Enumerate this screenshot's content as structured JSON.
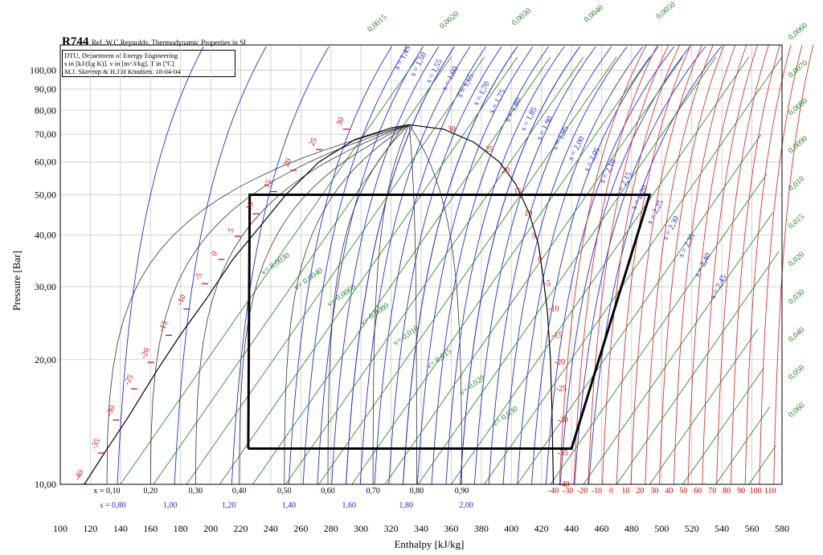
{
  "header": {
    "fluid": "R744",
    "ref": "Ref.:W.C.Reynolds: Thermodynamic Properties in SI",
    "info": [
      "DTU, Department of Energy Engineering",
      "s in [kJ/(kg K)]. v in [m^3/kg]. T in [ºC]",
      "M.J. Skovrup & H.J.H Knudsen. 18-04-04"
    ]
  },
  "chart_data": {
    "type": "line",
    "title": "R744",
    "xlabel": "Enthalpy [kJ/kg]",
    "ylabel": "Pressure [Bar]",
    "xlim": [
      100,
      580
    ],
    "ylim": [
      10,
      115
    ],
    "y_scale": "log",
    "grid": true,
    "x_ticks": [
      "100",
      "120",
      "140",
      "160",
      "180",
      "200",
      "220",
      "240",
      "260",
      "280",
      "300",
      "320",
      "340",
      "360",
      "380",
      "400",
      "420",
      "440",
      "460",
      "480",
      "500",
      "520",
      "540",
      "560",
      "580"
    ],
    "y_ticks": [
      {
        "value": 10,
        "label": "10,00"
      },
      {
        "value": 20,
        "label": "20,00"
      },
      {
        "value": 30,
        "label": "30,00"
      },
      {
        "value": 40,
        "label": "40,00"
      },
      {
        "value": 50,
        "label": "50,00"
      },
      {
        "value": 60,
        "label": "60,00"
      },
      {
        "value": 70,
        "label": "70,00"
      },
      {
        "value": 80,
        "label": "80,00"
      },
      {
        "value": 90,
        "label": "90,00"
      },
      {
        "value": 100,
        "label": "100,00"
      }
    ],
    "saturation_dome": {
      "liquid": [
        [
          116,
          10
        ],
        [
          130,
          12
        ],
        [
          145,
          14.5
        ],
        [
          165,
          19
        ],
        [
          180,
          23
        ],
        [
          197,
          28
        ],
        [
          215,
          35
        ],
        [
          233,
          42
        ],
        [
          250,
          50
        ],
        [
          272,
          60
        ],
        [
          296,
          68
        ],
        [
          320,
          72.5
        ],
        [
          332,
          73.8
        ]
      ],
      "vapor": [
        [
          332,
          73.8
        ],
        [
          355,
          72
        ],
        [
          375,
          67
        ],
        [
          392,
          60
        ],
        [
          403,
          53
        ],
        [
          412,
          45
        ],
        [
          418,
          38
        ],
        [
          421,
          32
        ],
        [
          424,
          26
        ],
        [
          426,
          20
        ],
        [
          427,
          15
        ],
        [
          427.5,
          12
        ],
        [
          428,
          10
        ]
      ]
    },
    "quality_lines": {
      "labels": [
        "x = 0,10",
        "0,20",
        "0,30",
        "0,40",
        "0,50",
        "0,60",
        "0,70",
        "0,80",
        "0,90"
      ],
      "x_at_10bar": [
        131,
        160,
        190,
        219,
        249,
        278,
        308,
        337,
        367
      ]
    },
    "isotherms_liquid_labels": [
      "-40",
      "-35",
      "-30",
      "-25",
      "-20",
      "-15",
      "-10",
      "-5",
      "0",
      "5",
      "10",
      "15",
      "20",
      "25",
      "30"
    ],
    "isotherms_liquid_points": [
      [
        114,
        10
      ],
      [
        125,
        11.9
      ],
      [
        135,
        14.3
      ],
      [
        147,
        17
      ],
      [
        158,
        19.7
      ],
      [
        170,
        22.9
      ],
      [
        182,
        26.5
      ],
      [
        194,
        30.5
      ],
      [
        205,
        34.9
      ],
      [
        216,
        39.7
      ],
      [
        228,
        45
      ],
      [
        240,
        50.9
      ],
      [
        253,
        57.3
      ],
      [
        270,
        64.3
      ],
      [
        288,
        72
      ]
    ],
    "isotherms_vapor_labels": [
      "30",
      "25",
      "20",
      "15",
      "10",
      "5",
      "0",
      "-5",
      "-10",
      "-15",
      "-20",
      "-25",
      "-30",
      "-35",
      "-40"
    ],
    "isotherms_vapor_points": [
      [
        356,
        72
      ],
      [
        381,
        64.3
      ],
      [
        392,
        57.3
      ],
      [
        400,
        50.9
      ],
      [
        407,
        45
      ],
      [
        412,
        39.7
      ],
      [
        416,
        34.9
      ],
      [
        420,
        30.5
      ],
      [
        423,
        26.5
      ],
      [
        425,
        22.9
      ],
      [
        427,
        19.7
      ],
      [
        428,
        17
      ],
      [
        429,
        14.3
      ],
      [
        429,
        11.9
      ],
      [
        430,
        10
      ]
    ],
    "isotherm_bottom_labels": [
      "-40",
      "-30",
      "-20",
      "-10",
      "0",
      "10",
      "20",
      "30",
      "40",
      "50",
      "60",
      "70",
      "80",
      "90",
      "100",
      "110"
    ],
    "isentropes": {
      "values": [
        0.8,
        1.0,
        1.2,
        1.4,
        1.6,
        1.8,
        2.0,
        1.45,
        1.5,
        1.55,
        1.6,
        1.65,
        1.7,
        1.75,
        1.8,
        1.85,
        1.9,
        1.95,
        2.0,
        2.05,
        2.1,
        2.15,
        2.2,
        2.25,
        2.3,
        2.35,
        2.4,
        2.45
      ],
      "bottom_labels": [
        "s = 0,80",
        "1,00",
        "1,20",
        "1,40",
        "1,60",
        "1,80",
        "2,00"
      ],
      "bottom_x": [
        135,
        173,
        212,
        252,
        292,
        330,
        370
      ],
      "curve_labels": [
        "s = 1,45",
        "s = 1,50",
        "s = 1,55",
        "s = 1,60",
        "s = 1,65",
        "s = 1,70",
        "s = 1,75",
        "s = 1,80",
        "s = 1,85",
        "s = 1,90",
        "s = 1,95",
        "s = 2,00",
        "s = 2,05",
        "s = 2,10",
        "s = 2,15",
        "s = 2,20",
        "s = 2,25",
        "s = 2,30",
        "s = 2,35",
        "s = 2,40",
        "s = 2,45"
      ]
    },
    "isochores": {
      "inside_labels": [
        "v= 0,0030",
        "v= 0,0040",
        "v= 0,0060",
        "v= 0,0080",
        "v= 0,010",
        "v= 0,015",
        "v= 0,020",
        "v= 0,030"
      ],
      "right_labels": [
        "0,0015",
        "0,0020",
        "0,0030",
        "0,0040",
        "0,0050",
        "0,0060",
        "0,0070",
        "0,0080",
        "0,0090",
        "0,010",
        "0,015",
        "0,020",
        "0,030",
        "0,040",
        "0,050",
        "0,060"
      ]
    },
    "cycle": {
      "points": [
        [
          225,
          12.2
        ],
        [
          226,
          50
        ],
        [
          492,
          50
        ],
        [
          440,
          12.2
        ],
        [
          225,
          12.2
        ]
      ]
    }
  }
}
